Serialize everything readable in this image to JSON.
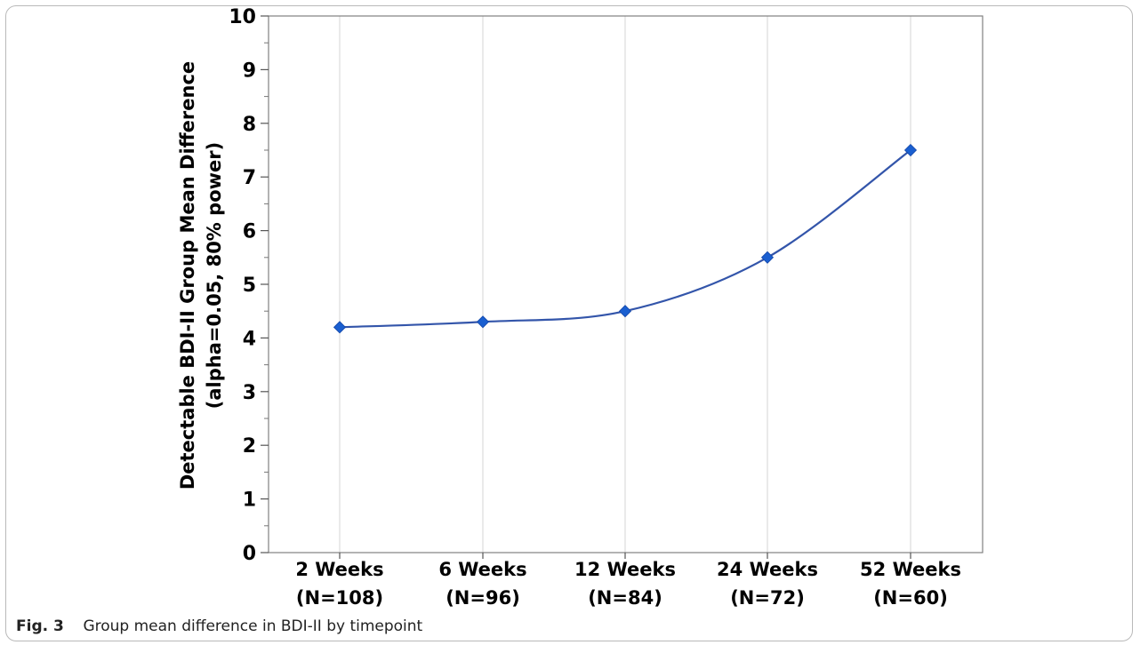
{
  "chart_data": {
    "type": "line",
    "ylabel": [
      "Detectable BDI-II Group Mean Difference",
      "(alpha=0.05, 80% power)"
    ],
    "xlabel": "",
    "categories": [
      [
        "2 Weeks",
        "(N=108)"
      ],
      [
        "6 Weeks",
        "(N=96)"
      ],
      [
        "12 Weeks",
        "(N=84)"
      ],
      [
        "24 Weeks",
        "(N=72)"
      ],
      [
        "52 Weeks",
        "(N=60)"
      ]
    ],
    "series": [
      {
        "values": [
          4.2,
          4.3,
          4.5,
          5.5,
          7.5
        ]
      }
    ],
    "ylim": [
      0,
      10
    ],
    "yticks": [
      0,
      1,
      2,
      3,
      4,
      5,
      6,
      7,
      8,
      9,
      10
    ],
    "grid": "vertical",
    "line_color": "#3355aa",
    "marker_color": "#1a5fd0",
    "marker": "diamond"
  },
  "caption": {
    "label": "Fig. 3",
    "text": "Group mean difference in BDI-II by timepoint"
  }
}
